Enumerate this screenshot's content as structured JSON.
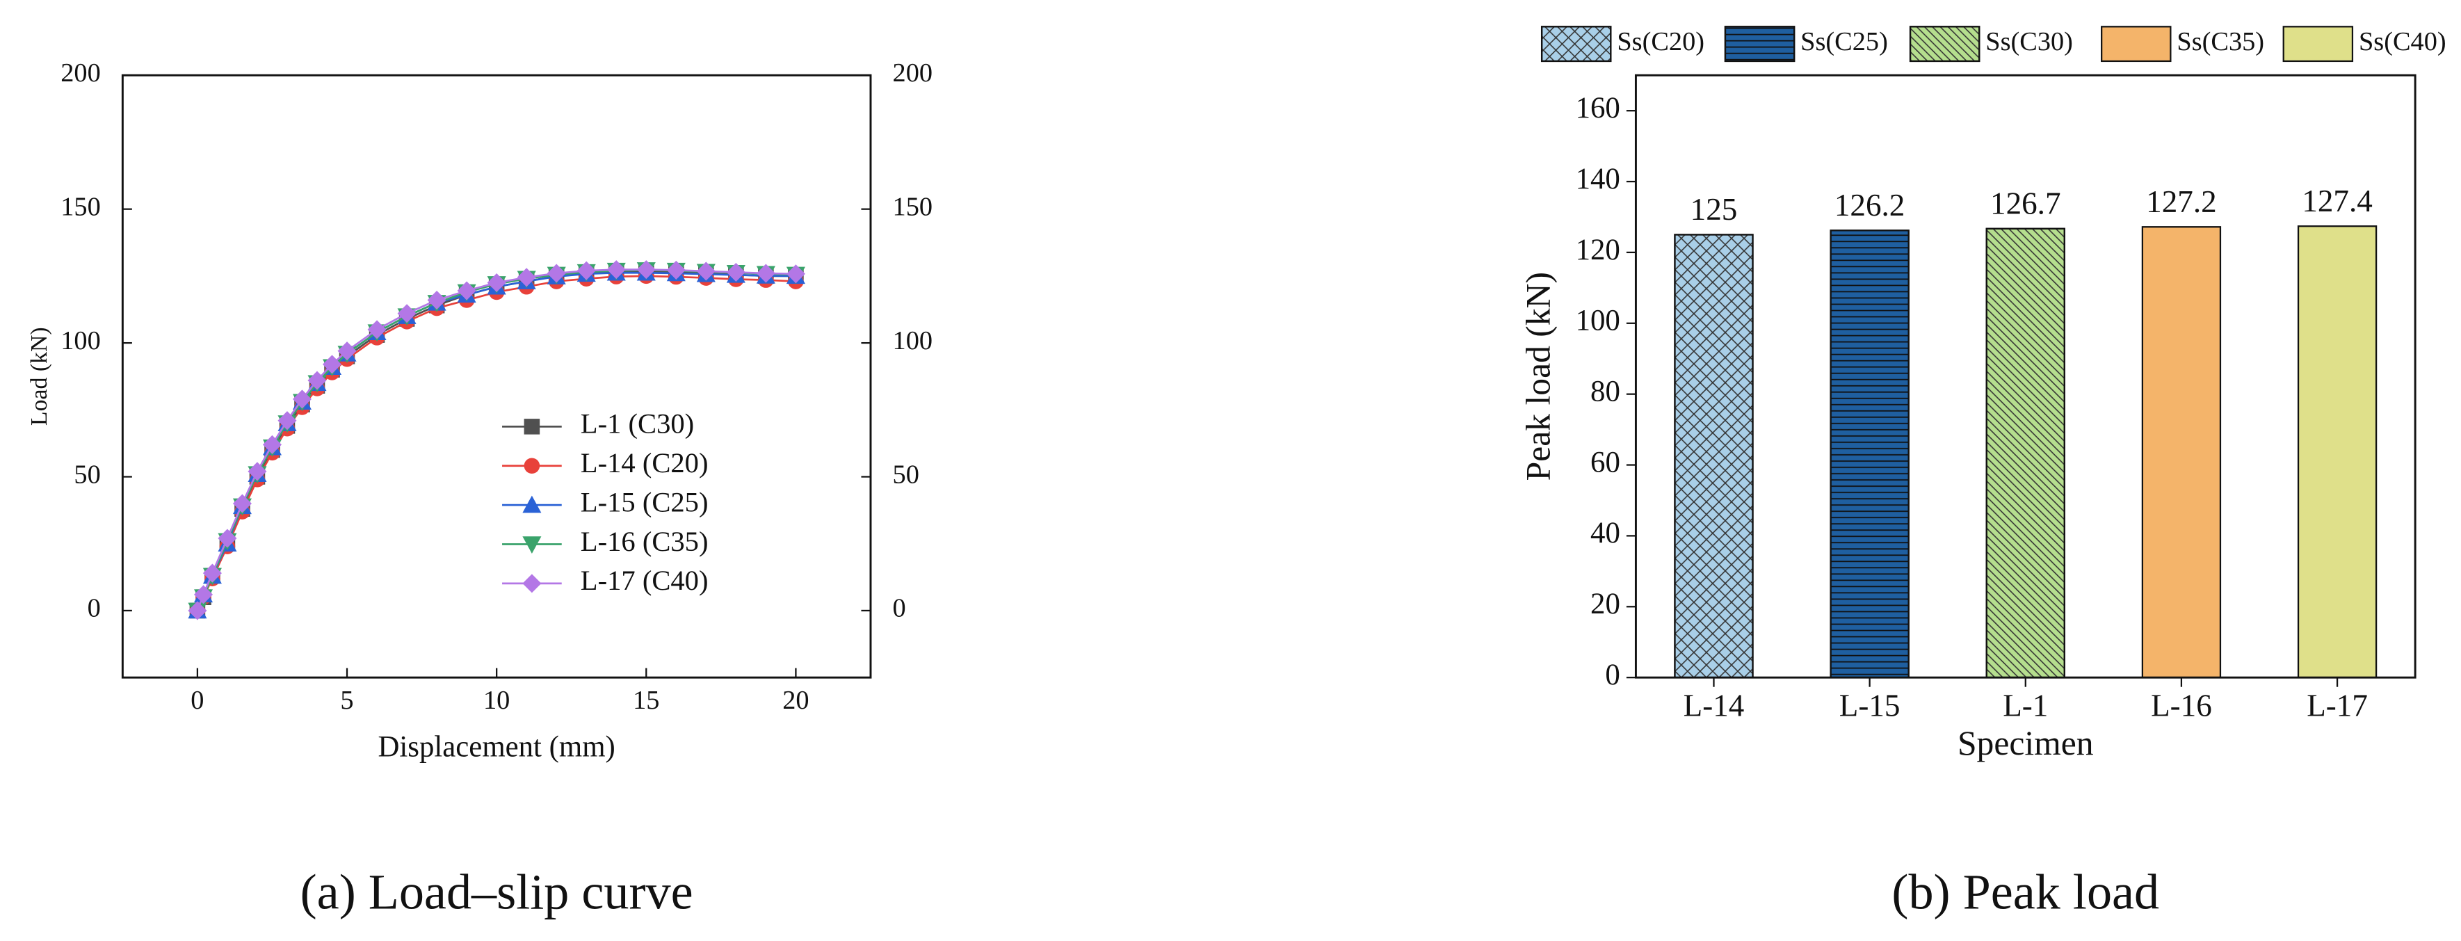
{
  "chart_data": [
    {
      "type": "line",
      "xlabel": "Displacement (mm)",
      "ylabel": "Load (kN)",
      "caption": "(a) Load–slip curve",
      "xlim": [
        -2.5,
        22.5
      ],
      "xticks": [
        0,
        5,
        10,
        15,
        20
      ],
      "ylim": [
        -25,
        200
      ],
      "yticks": [
        0,
        50,
        100,
        150,
        200
      ],
      "y2lim": [
        -25,
        200
      ],
      "y2ticks": [
        0,
        50,
        100,
        150,
        200
      ],
      "x": [
        0,
        0.2,
        0.5,
        1,
        1.5,
        2,
        2.5,
        3,
        3.5,
        4,
        4.5,
        5,
        6,
        7,
        8,
        9,
        10,
        11,
        12,
        13,
        14,
        15,
        16,
        17,
        18,
        19,
        20
      ],
      "series": [
        {
          "name": "L-1 (C30)",
          "color": "#505050",
          "marker": "square",
          "values": [
            0,
            5,
            13,
            25,
            38,
            50,
            60,
            69,
            77,
            84,
            90,
            95,
            103,
            109,
            114,
            118,
            121,
            123,
            125,
            126,
            126.5,
            126.7,
            126.5,
            126,
            125.5,
            125,
            125
          ]
        },
        {
          "name": "L-14 (C20)",
          "color": "#e8413a",
          "marker": "circle",
          "values": [
            0,
            5,
            12,
            24,
            37,
            49,
            59,
            68,
            76,
            83,
            89,
            94,
            102,
            108,
            113,
            116,
            119,
            121,
            123,
            124,
            124.8,
            125,
            124.7,
            124.3,
            123.8,
            123.5,
            123
          ]
        },
        {
          "name": "L-15 (C25)",
          "color": "#2a62d6",
          "marker": "triangle-up",
          "values": [
            0,
            6,
            13,
            25,
            39,
            51,
            61,
            70,
            78,
            85,
            91,
            96,
            104,
            110,
            115,
            118,
            121,
            123,
            124.8,
            125.8,
            126.2,
            126.2,
            126,
            125.7,
            125.4,
            125.1,
            125
          ]
        },
        {
          "name": "L-16 (C35)",
          "color": "#3aa36b",
          "marker": "triangle-down",
          "values": [
            0,
            5,
            13,
            26,
            39,
            51,
            61,
            70,
            78,
            85,
            91,
            96,
            104,
            110,
            115,
            119,
            122,
            124,
            125.5,
            126.5,
            127,
            127.2,
            127,
            126.6,
            126.2,
            125.8,
            125.5
          ]
        },
        {
          "name": "L-17 (C40)",
          "color": "#b377e6",
          "marker": "diamond",
          "values": [
            0,
            6,
            14,
            27,
            40,
            52,
            62,
            71,
            79,
            86,
            92,
            97,
            105,
            111,
            116,
            119.5,
            122.5,
            124.5,
            126,
            127,
            127.4,
            127.4,
            127.2,
            126.8,
            126.4,
            126,
            125.8
          ]
        }
      ]
    },
    {
      "type": "bar",
      "xlabel": "Specimen",
      "ylabel": "Peak load (kN)",
      "caption": "(b) Peak load",
      "categories": [
        "L-14",
        "L-15",
        "L-1",
        "L-16",
        "L-17"
      ],
      "values": [
        125,
        126.2,
        126.7,
        127.2,
        127.4
      ],
      "legend": [
        "Ss(C20)",
        "Ss(C25)",
        "Ss(C30)",
        "Ss(C35)",
        "Ss(C40)"
      ],
      "colors": [
        "#a9cfe8",
        "#1f5fa0",
        "#b5de8e",
        "#f4b46a",
        "#dfe08a"
      ],
      "hatches": [
        "cross",
        "horizontal",
        "diagonal",
        "none",
        "none"
      ],
      "ylim": [
        0,
        170
      ],
      "yticks": [
        0,
        20,
        40,
        60,
        80,
        100,
        120,
        140,
        160
      ]
    }
  ]
}
